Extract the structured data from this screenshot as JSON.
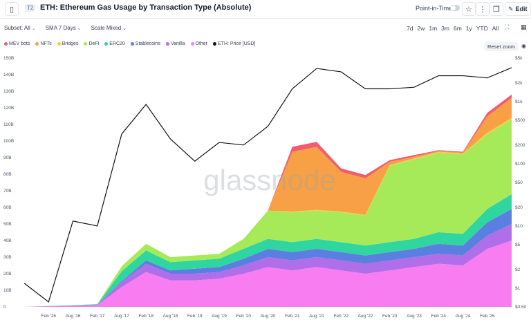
{
  "header": {
    "badge": "T2",
    "title": "ETH: Ethereum Gas Usage by Transaction Type (Absolute)",
    "point_in_time": "Point-in-Time",
    "edit_label": "Edit"
  },
  "controls": {
    "subset": "Subset: All",
    "sma": "SMA 7 Days",
    "scale": "Scale Mixed"
  },
  "ranges": [
    "7d",
    "2w",
    "1m",
    "3m",
    "6m",
    "1y",
    "YTD",
    "All"
  ],
  "reset_zoom": "Reset zoom",
  "watermark": "glassnode",
  "chart_data": {
    "type": "area",
    "x": [
      "2015-08",
      "2016-02",
      "2016-08",
      "2017-02",
      "2017-08",
      "2018-02",
      "2018-08",
      "2019-02",
      "2019-08",
      "2020-02",
      "2020-08",
      "2021-02",
      "2021-08",
      "2022-02",
      "2022-08",
      "2023-02",
      "2023-08",
      "2024-02",
      "2024-08",
      "2025-02",
      "2025-04"
    ],
    "x_tick_labels": [
      "Feb '16",
      "Aug '16",
      "Feb '17",
      "Aug '17",
      "Feb '18",
      "Aug '18",
      "Feb '19",
      "Aug '19",
      "Feb '20",
      "Aug '20",
      "Feb '21",
      "Aug '21",
      "Feb '22",
      "Aug '22",
      "Feb '23",
      "Aug '23",
      "Feb '24",
      "Aug '24",
      "Feb '25"
    ],
    "y_left_ticks": [
      "0",
      "10B",
      "20B",
      "30B",
      "40B",
      "50B",
      "60B",
      "70B",
      "80B",
      "90B",
      "100B",
      "110B",
      "120B",
      "130B",
      "140B",
      "150B"
    ],
    "y_right_ticks": [
      "$0.50",
      "$1",
      "$2",
      "$5",
      "$10",
      "$20",
      "$50",
      "$100",
      "$200",
      "$500",
      "$1k",
      "$2k",
      "$5k"
    ],
    "ylim_left": [
      0,
      150000000000
    ],
    "y_right_scale": "log",
    "series": [
      {
        "name": "Other",
        "color": "#f77df0",
        "values": [
          0,
          0.3,
          0.6,
          1,
          12,
          21,
          16,
          16,
          17,
          20,
          24,
          22,
          24,
          22,
          20,
          22,
          24,
          26,
          25,
          35,
          40
        ]
      },
      {
        "name": "Vanilla",
        "color": "#b06ee8",
        "values": [
          0,
          0.1,
          0.2,
          0.3,
          3,
          5,
          4,
          4,
          4,
          5,
          6,
          6,
          6,
          6,
          6,
          6,
          6,
          6,
          6,
          8,
          10
        ]
      },
      {
        "name": "Stablecoins",
        "color": "#5b7fe0",
        "values": [
          0,
          0,
          0,
          0,
          0.5,
          2,
          2,
          3,
          3,
          4,
          5,
          5,
          5,
          5,
          5,
          5,
          5,
          6,
          6,
          8,
          9
        ]
      },
      {
        "name": "ERC20",
        "color": "#2fd6a0",
        "values": [
          0,
          0.1,
          0.2,
          0.3,
          6,
          6,
          5,
          5,
          5,
          6,
          6,
          6,
          6,
          6,
          6,
          6,
          6,
          7,
          7,
          8,
          9
        ]
      },
      {
        "name": "DeFi",
        "color": "#a6ea5a",
        "values": [
          0,
          0,
          0,
          0,
          3,
          4,
          3,
          3,
          3,
          6,
          17,
          18,
          17,
          18,
          18,
          46,
          48,
          48,
          48,
          45,
          45
        ]
      },
      {
        "name": "Bridges",
        "color": "#f3cf3d",
        "values": [
          0,
          0,
          0,
          0,
          0,
          0,
          0,
          0,
          0,
          0,
          0,
          0.5,
          0.5,
          0.5,
          0.5,
          0.5,
          0.5,
          0.5,
          0.5,
          1,
          1
        ]
      },
      {
        "name": "NFTs",
        "color": "#f7a046",
        "values": [
          0,
          0,
          0,
          0,
          0,
          0,
          0,
          0,
          0,
          0,
          0,
          36,
          38,
          24,
          22,
          2,
          1,
          0.5,
          0.5,
          10,
          12
        ]
      },
      {
        "name": "MEV bots",
        "color": "#f25c6e",
        "values": [
          0,
          0,
          0,
          0,
          0,
          0,
          0,
          0,
          0,
          0,
          0,
          3,
          3,
          2,
          2,
          1,
          1,
          0.5,
          0.5,
          2,
          2
        ]
      }
    ],
    "price_series": {
      "name": "ETH: Price [USD]",
      "color": "#111111",
      "values": [
        1.2,
        0.6,
        12,
        10,
        300,
        900,
        250,
        110,
        220,
        200,
        400,
        1600,
        3400,
        3000,
        1600,
        1600,
        1700,
        2600,
        2600,
        2400,
        3500
      ]
    }
  }
}
